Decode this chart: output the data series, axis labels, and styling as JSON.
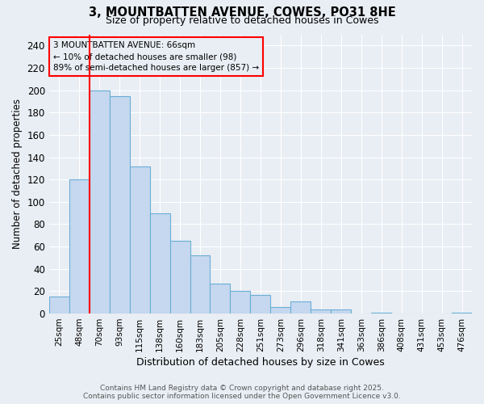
{
  "title1": "3, MOUNTBATTEN AVENUE, COWES, PO31 8HE",
  "title2": "Size of property relative to detached houses in Cowes",
  "xlabel": "Distribution of detached houses by size in Cowes",
  "ylabel": "Number of detached properties",
  "bar_labels": [
    "25sqm",
    "48sqm",
    "70sqm",
    "93sqm",
    "115sqm",
    "138sqm",
    "160sqm",
    "183sqm",
    "205sqm",
    "228sqm",
    "251sqm",
    "273sqm",
    "296sqm",
    "318sqm",
    "341sqm",
    "363sqm",
    "386sqm",
    "408sqm",
    "431sqm",
    "453sqm",
    "476sqm"
  ],
  "bar_values": [
    15,
    120,
    200,
    195,
    132,
    90,
    65,
    52,
    27,
    20,
    17,
    6,
    11,
    4,
    4,
    0,
    1,
    0,
    0,
    0,
    1
  ],
  "bar_color": "#C5D8EF",
  "bar_edge_color": "#6AAED6",
  "background_color": "#E9EEF4",
  "grid_color": "#FFFFFF",
  "red_line_x": 1.5,
  "annotation_text": "3 MOUNTBATTEN AVENUE: 66sqm\n← 10% of detached houses are smaller (98)\n89% of semi-detached houses are larger (857) →",
  "ylim": [
    0,
    250
  ],
  "yticks": [
    0,
    20,
    40,
    60,
    80,
    100,
    120,
    140,
    160,
    180,
    200,
    220,
    240
  ],
  "footer1": "Contains HM Land Registry data © Crown copyright and database right 2025.",
  "footer2": "Contains public sector information licensed under the Open Government Licence v3.0."
}
